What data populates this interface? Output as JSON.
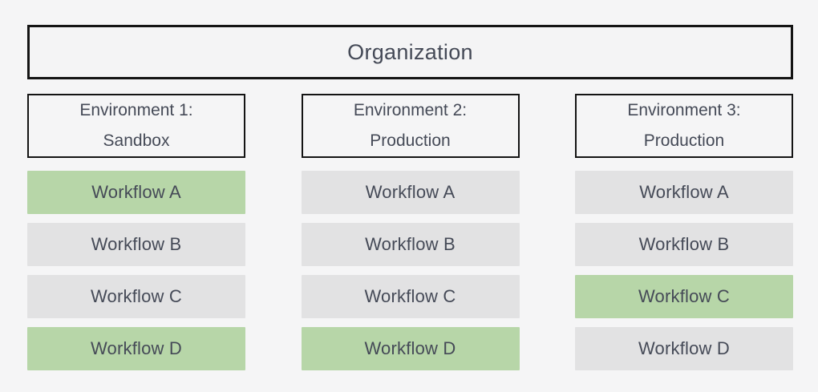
{
  "canvas": {
    "background": "#f5f5f6"
  },
  "colors": {
    "highlight_green": "#b7d6a8",
    "neutral_gray": "#e2e2e3",
    "border_black": "#141414",
    "text_dark": "#454a57"
  },
  "organization": {
    "label": "Organization"
  },
  "environments": [
    {
      "title_line1": "Environment 1:",
      "title_line2": "Sandbox",
      "workflows": [
        {
          "label": "Workflow A",
          "highlighted": true,
          "color": "#b7d6a8"
        },
        {
          "label": "Workflow B",
          "highlighted": false,
          "color": "#e2e2e3"
        },
        {
          "label": "Workflow C",
          "highlighted": false,
          "color": "#e2e2e3"
        },
        {
          "label": "Workflow D",
          "highlighted": true,
          "color": "#b7d6a8"
        }
      ]
    },
    {
      "title_line1": "Environment 2:",
      "title_line2": "Production",
      "workflows": [
        {
          "label": "Workflow A",
          "highlighted": false,
          "color": "#e2e2e3"
        },
        {
          "label": "Workflow B",
          "highlighted": false,
          "color": "#e2e2e3"
        },
        {
          "label": "Workflow C",
          "highlighted": false,
          "color": "#e2e2e3"
        },
        {
          "label": "Workflow D",
          "highlighted": true,
          "color": "#b7d6a8"
        }
      ]
    },
    {
      "title_line1": "Environment 3:",
      "title_line2": "Production",
      "workflows": [
        {
          "label": "Workflow A",
          "highlighted": false,
          "color": "#e2e2e3"
        },
        {
          "label": "Workflow B",
          "highlighted": false,
          "color": "#e2e2e3"
        },
        {
          "label": "Workflow C",
          "highlighted": true,
          "color": "#b7d6a8"
        },
        {
          "label": "Workflow D",
          "highlighted": false,
          "color": "#e2e2e3"
        }
      ]
    }
  ]
}
